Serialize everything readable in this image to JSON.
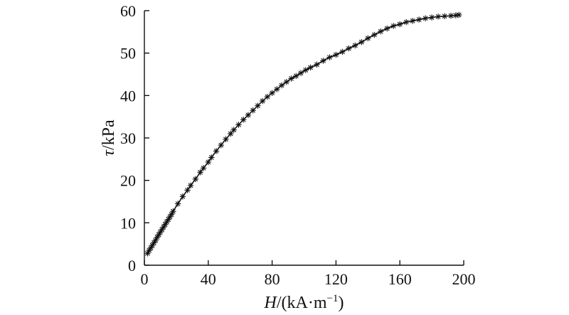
{
  "chart_data": {
    "type": "line",
    "xlabel_var": "H",
    "xlabel_unit": "/(kA·m",
    "xlabel_sup": "−1",
    "xlabel_close": ")",
    "ylabel_var": "τ",
    "ylabel_unit": "/kPa",
    "xlim": [
      0,
      200
    ],
    "ylim": [
      0,
      60
    ],
    "xticks": [
      0,
      40,
      80,
      120,
      160,
      200
    ],
    "yticks": [
      0,
      10,
      20,
      30,
      40,
      50,
      60
    ],
    "xtick_labels": [
      "0",
      "40",
      "80",
      "120",
      "160",
      "200"
    ],
    "ytick_labels": [
      "0",
      "10",
      "20",
      "30",
      "40",
      "50",
      "60"
    ],
    "grid": false,
    "marker": "asterisk",
    "series": [
      {
        "x": [
          2,
          3,
          4,
          5,
          6,
          7,
          8,
          9,
          10,
          11,
          12,
          13,
          14,
          15,
          16,
          17,
          18,
          21,
          24,
          27,
          29,
          32,
          35,
          37,
          40,
          42,
          45,
          48,
          51,
          54,
          56,
          59,
          62,
          65,
          68,
          71,
          74,
          77,
          80,
          83,
          86,
          89,
          92,
          95,
          98,
          101,
          104,
          108,
          112,
          116,
          120,
          124,
          128,
          132,
          136,
          140,
          144,
          148,
          152,
          156,
          160,
          164,
          168,
          172,
          176,
          180,
          184,
          188,
          192,
          195,
          197
        ],
        "y": [
          2.8,
          3.5,
          4.1,
          4.7,
          5.3,
          5.9,
          6.6,
          7.2,
          7.8,
          8.4,
          9.0,
          9.6,
          10.2,
          10.8,
          11.4,
          12.0,
          12.7,
          14.5,
          16.2,
          17.7,
          18.8,
          20.3,
          21.9,
          22.9,
          24.3,
          25.4,
          26.9,
          28.3,
          29.7,
          31.0,
          31.9,
          33.1,
          34.3,
          35.4,
          36.5,
          37.6,
          38.7,
          39.7,
          40.6,
          41.5,
          42.4,
          43.2,
          44.0,
          44.6,
          45.3,
          46.0,
          46.6,
          47.3,
          48.2,
          49.0,
          49.6,
          50.3,
          51.1,
          51.8,
          52.6,
          53.5,
          54.3,
          55.1,
          55.8,
          56.4,
          56.8,
          57.3,
          57.6,
          57.9,
          58.2,
          58.4,
          58.6,
          58.7,
          58.8,
          58.9,
          59.0
        ]
      }
    ]
  }
}
